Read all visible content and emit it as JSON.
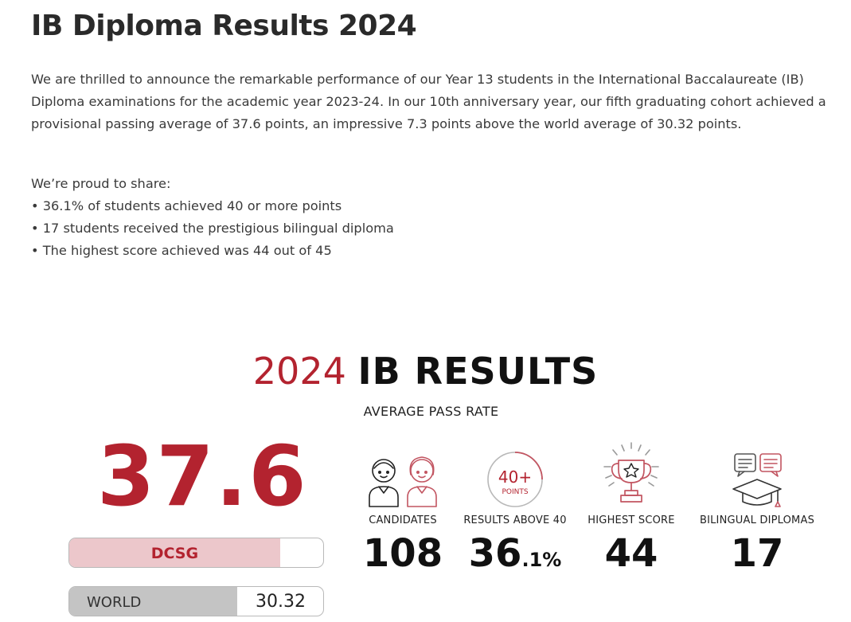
{
  "page": {
    "title": "IB Diploma Results 2024",
    "intro": "We are thrilled to announce the remarkable performance of our Year 13 students in the International Baccalaureate (IB) Diploma examinations for the academic year 2023-24. In our 10th anniversary year, our fifth graduating cohort achieved a provisional passing average of 37.6 points, an impressive 7.3 points above the world average of 30.32 points.",
    "proud_heading": "We’re proud to share:",
    "bullets": [
      "36.1% of students achieved 40 or more points",
      "17 students received the prestigious bilingual diploma",
      "The highest score achieved was 44 out of 45"
    ]
  },
  "infographic": {
    "heading_year": "2024",
    "heading_rest": "IB RESULTS",
    "average_label": "AVERAGE PASS RATE",
    "average_value": "37.6",
    "comparison": [
      {
        "label": "DCSG",
        "value": 37.6
      },
      {
        "label": "WORLD",
        "value": 30.32,
        "value_text": "30.32"
      }
    ],
    "stats": [
      {
        "label": "CANDIDATES",
        "value": "108",
        "icon": "student-pair-icon"
      },
      {
        "label": "RESULTS ABOVE 40",
        "value": "36",
        "suffix": ".1%",
        "icon": "40-points-badge-icon",
        "badge_number": "40+",
        "badge_text": "POINTS"
      },
      {
        "label": "HIGHEST SCORE",
        "value": "44",
        "icon": "trophy-icon"
      },
      {
        "label": "BILINGUAL DIPLOMAS",
        "value": "17",
        "icon": "speech-bubbles-grad-cap-icon"
      }
    ],
    "colors": {
      "accent": "#b3232f",
      "dcsg_bar": "#ecc7cb",
      "world_bar": "#c4c4c4"
    }
  }
}
